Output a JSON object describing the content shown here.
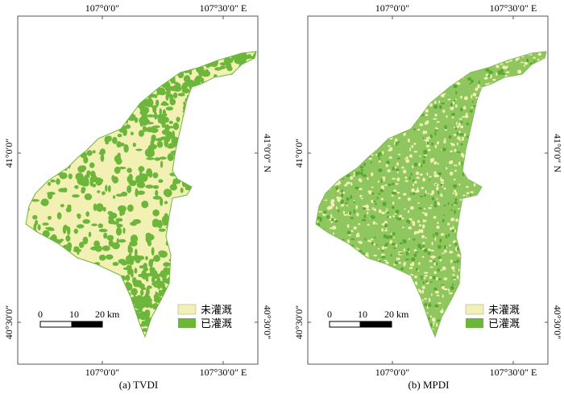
{
  "panels": [
    {
      "caption": "(a) TVDI",
      "top_x_labels": [
        "107°0′0″",
        "107°30′0″ E"
      ],
      "bottom_x_labels": [
        "107°0′0″",
        "107°30′0″ E"
      ],
      "left_y_labels": [
        "41°0′0″",
        "40°30′0″"
      ],
      "right_y_labels": [
        "41°0′0″ N",
        "40°30′0″"
      ],
      "scalebar": {
        "labels": [
          "0",
          "10",
          "20 km"
        ]
      },
      "legend": [
        {
          "label": "未灌溉",
          "color": "#f3f0b3"
        },
        {
          "label": "已灌溉",
          "color": "#6cb63c"
        }
      ]
    },
    {
      "caption": "(b) MPDI",
      "top_x_labels": [
        "107°0′0″",
        "107°30′0″ E"
      ],
      "bottom_x_labels": [
        "107°0′0″",
        "107°30′0″ E"
      ],
      "left_y_labels": [
        "41°0′0″",
        "40°30′0″"
      ],
      "right_y_labels": [
        "41°0′0″ N",
        "40°30′0″"
      ],
      "scalebar": {
        "labels": [
          "0",
          "10",
          "20 km"
        ]
      },
      "legend": [
        {
          "label": "未灌溉",
          "color": "#f3f0b3"
        },
        {
          "label": "已灌溉",
          "color": "#6cb63c"
        }
      ]
    }
  ],
  "colors": {
    "non_irrigated": "#f3f0b3",
    "irrigated": "#6cb63c",
    "frame": "#555555"
  },
  "icons": [
    "map-region",
    "scale-bar",
    "legend-swatch"
  ]
}
